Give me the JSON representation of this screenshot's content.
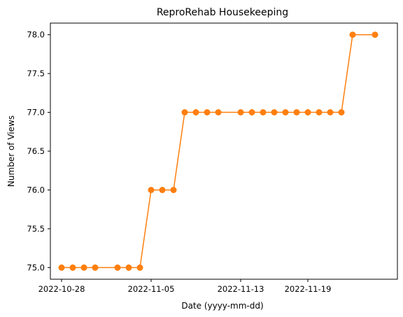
{
  "chart_data": {
    "type": "line",
    "title": "ReproRehab Housekeeping",
    "xlabel": "Date (yyyy-mm-dd)",
    "ylabel": "Number of Views",
    "x_ticks": [
      "2022-10-28",
      "2022-11-05",
      "2022-11-13",
      "2022-11-19"
    ],
    "y_ticks": [
      "75.0",
      "75.5",
      "76.0",
      "76.5",
      "77.0",
      "77.5",
      "78.0"
    ],
    "xlim": [
      "2022-10-27",
      "2022-11-27"
    ],
    "ylim": [
      74.85,
      78.15
    ],
    "grid": false,
    "series": [
      {
        "color": "#ff7f0e",
        "marker": "circle",
        "points": [
          {
            "x": "2022-10-28",
            "y": 75
          },
          {
            "x": "2022-10-29",
            "y": 75
          },
          {
            "x": "2022-10-30",
            "y": 75
          },
          {
            "x": "2022-10-31",
            "y": 75
          },
          {
            "x": "2022-11-02",
            "y": 75
          },
          {
            "x": "2022-11-03",
            "y": 75
          },
          {
            "x": "2022-11-04",
            "y": 75
          },
          {
            "x": "2022-11-05",
            "y": 76
          },
          {
            "x": "2022-11-06",
            "y": 76
          },
          {
            "x": "2022-11-07",
            "y": 76
          },
          {
            "x": "2022-11-08",
            "y": 77
          },
          {
            "x": "2022-11-09",
            "y": 77
          },
          {
            "x": "2022-11-10",
            "y": 77
          },
          {
            "x": "2022-11-11",
            "y": 77
          },
          {
            "x": "2022-11-13",
            "y": 77
          },
          {
            "x": "2022-11-14",
            "y": 77
          },
          {
            "x": "2022-11-15",
            "y": 77
          },
          {
            "x": "2022-11-16",
            "y": 77
          },
          {
            "x": "2022-11-17",
            "y": 77
          },
          {
            "x": "2022-11-18",
            "y": 77
          },
          {
            "x": "2022-11-19",
            "y": 77
          },
          {
            "x": "2022-11-20",
            "y": 77
          },
          {
            "x": "2022-11-21",
            "y": 77
          },
          {
            "x": "2022-11-22",
            "y": 77
          },
          {
            "x": "2022-11-23",
            "y": 78
          },
          {
            "x": "2022-11-25",
            "y": 78
          }
        ]
      }
    ]
  }
}
